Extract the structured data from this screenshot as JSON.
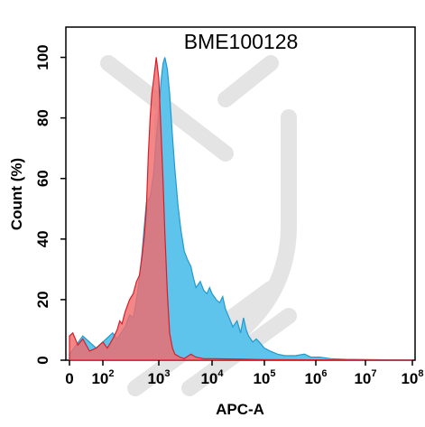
{
  "chart_data": {
    "type": "area",
    "title": "BME100128",
    "xlabel": "APC-A",
    "ylabel": "Count  (%)",
    "x_scale": "log",
    "xlim": [
      0,
      100000000
    ],
    "ylim": [
      0,
      110
    ],
    "x_tick_labels": [
      {
        "value": 0,
        "label": "0"
      },
      {
        "value": 100,
        "base": "10",
        "exp": "2"
      },
      {
        "value": 1000,
        "base": "10",
        "exp": "3"
      },
      {
        "value": 10000,
        "base": "10",
        "exp": "4"
      },
      {
        "value": 100000,
        "base": "10",
        "exp": "5"
      },
      {
        "value": 1000000,
        "base": "10",
        "exp": "6"
      },
      {
        "value": 10000000,
        "base": "10",
        "exp": "7"
      },
      {
        "value": 100000000,
        "base": "10",
        "exp": "8"
      }
    ],
    "y_ticks": [
      0,
      20,
      40,
      60,
      80,
      100
    ],
    "watermark": "gray-dna-logo",
    "series": [
      {
        "color": "#5fc4ec",
        "stroke": "#1f9bd0",
        "points": [
          [
            0,
            2
          ],
          [
            20,
            5
          ],
          [
            40,
            8
          ],
          [
            60,
            6
          ],
          [
            80,
            4
          ],
          [
            150,
            9
          ],
          [
            180,
            7
          ],
          [
            250,
            11
          ],
          [
            300,
            15
          ],
          [
            350,
            14
          ],
          [
            400,
            20
          ],
          [
            450,
            27
          ],
          [
            500,
            35
          ],
          [
            600,
            52
          ],
          [
            700,
            54
          ],
          [
            800,
            61
          ],
          [
            900,
            73
          ],
          [
            1000,
            82
          ],
          [
            1100,
            92
          ],
          [
            1200,
            98
          ],
          [
            1300,
            100
          ],
          [
            1450,
            96
          ],
          [
            1600,
            88
          ],
          [
            1800,
            74
          ],
          [
            2000,
            63
          ],
          [
            2300,
            51
          ],
          [
            2600,
            43
          ],
          [
            3000,
            36
          ],
          [
            3500,
            33
          ],
          [
            4000,
            31
          ],
          [
            4500,
            27
          ],
          [
            5000,
            24
          ],
          [
            6000,
            26
          ],
          [
            7000,
            23
          ],
          [
            8000,
            22
          ],
          [
            9000,
            24
          ],
          [
            10000,
            22
          ],
          [
            12000,
            20
          ],
          [
            14000,
            19
          ],
          [
            16000,
            21
          ],
          [
            18000,
            17
          ],
          [
            20000,
            15
          ],
          [
            25000,
            11
          ],
          [
            30000,
            13
          ],
          [
            35000,
            9
          ],
          [
            40000,
            14
          ],
          [
            45000,
            10
          ],
          [
            50000,
            8
          ],
          [
            60000,
            6
          ],
          [
            70000,
            7
          ],
          [
            80000,
            6
          ],
          [
            100000,
            4
          ],
          [
            130000,
            3
          ],
          [
            180000,
            2
          ],
          [
            250000,
            1.5
          ],
          [
            400000,
            1.5
          ],
          [
            600000,
            2
          ],
          [
            800000,
            1
          ],
          [
            1200000,
            1
          ],
          [
            2000000,
            0.5
          ],
          [
            4000000,
            0.3
          ],
          [
            100000000,
            0
          ]
        ]
      },
      {
        "color": "#f06b6d",
        "stroke": "#d81e26",
        "points": [
          [
            0,
            8
          ],
          [
            10,
            9
          ],
          [
            25,
            5
          ],
          [
            40,
            7
          ],
          [
            60,
            3
          ],
          [
            80,
            4
          ],
          [
            100,
            6
          ],
          [
            120,
            4
          ],
          [
            150,
            7
          ],
          [
            180,
            10
          ],
          [
            200,
            13
          ],
          [
            220,
            12
          ],
          [
            250,
            16
          ],
          [
            300,
            20
          ],
          [
            350,
            22
          ],
          [
            400,
            26
          ],
          [
            450,
            28
          ],
          [
            500,
            34
          ],
          [
            550,
            41
          ],
          [
            600,
            50
          ],
          [
            650,
            68
          ],
          [
            700,
            80
          ],
          [
            750,
            88
          ],
          [
            800,
            92
          ],
          [
            900,
            100
          ],
          [
            1000,
            93
          ],
          [
            1100,
            76
          ],
          [
            1200,
            59
          ],
          [
            1300,
            42
          ],
          [
            1450,
            22
          ],
          [
            1600,
            9
          ],
          [
            1800,
            4
          ],
          [
            2000,
            2
          ],
          [
            2500,
            1
          ],
          [
            3000,
            0.5
          ],
          [
            4000,
            2
          ],
          [
            5000,
            1
          ],
          [
            7000,
            0.5
          ],
          [
            10000,
            0.5
          ],
          [
            30000,
            0.4
          ],
          [
            100000,
            0.2
          ],
          [
            100000000,
            0
          ]
        ]
      }
    ]
  }
}
